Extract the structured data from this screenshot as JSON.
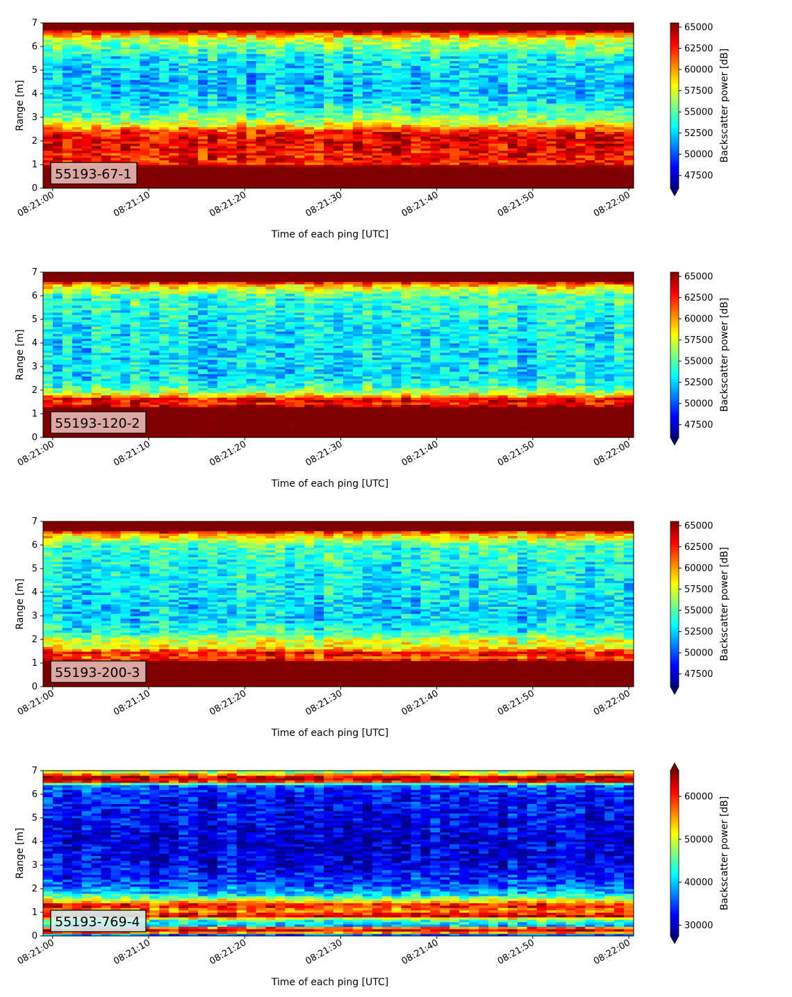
{
  "panels": [
    {
      "id": "55193-67-1",
      "label": "55193-67-1"
    },
    {
      "id": "55193-120-2",
      "label": "55193-120-2"
    },
    {
      "id": "55193-200-3",
      "label": "55193-200-3"
    },
    {
      "id": "55193-769-4",
      "label": "55193-769-4"
    }
  ],
  "colors": {
    "label_box_bg": "#e6b8b5",
    "label_box_bg_4": "#d6efef"
  },
  "chart_data": [
    {
      "type": "heatmap",
      "label": "55193-67-1",
      "xlabel": "Time of each ping [UTC]",
      "ylabel": "Range [m]",
      "colorbar_label": "Backscatter power [dB]",
      "x_ticks": [
        "08:21:00",
        "08:21:10",
        "08:21:20",
        "08:21:30",
        "08:21:40",
        "08:21:50",
        "08:22:00"
      ],
      "y_ticks": [
        0,
        1,
        2,
        3,
        4,
        5,
        6,
        7
      ],
      "xlim": [
        "08:20:59",
        "08:22:00.5"
      ],
      "ylim": [
        0,
        7
      ],
      "colormap": "jet",
      "clim": [
        46000,
        65500
      ],
      "colorbar_ticks": [
        47500,
        50000,
        52500,
        55000,
        57500,
        60000,
        62500,
        65000
      ],
      "colorbar_extend": "min",
      "profile": [
        [
          0,
          66000
        ],
        [
          0.25,
          66000
        ],
        [
          0.9,
          66000
        ],
        [
          1.05,
          62500
        ],
        [
          1.6,
          63000
        ],
        [
          2.0,
          63500
        ],
        [
          2.4,
          62500
        ],
        [
          2.7,
          58000
        ],
        [
          3.0,
          55500
        ],
        [
          3.6,
          53000
        ],
        [
          4.2,
          52000
        ],
        [
          5.0,
          52500
        ],
        [
          5.6,
          53500
        ],
        [
          6.3,
          57000
        ],
        [
          6.6,
          62000
        ],
        [
          6.75,
          66000
        ],
        [
          7.0,
          66000
        ]
      ]
    },
    {
      "type": "heatmap",
      "label": "55193-120-2",
      "xlabel": "Time of each ping [UTC]",
      "ylabel": "Range [m]",
      "colorbar_label": "Backscatter power [dB]",
      "x_ticks": [
        "08:21:00",
        "08:21:10",
        "08:21:20",
        "08:21:30",
        "08:21:40",
        "08:21:50",
        "08:22:00"
      ],
      "y_ticks": [
        0,
        1,
        2,
        3,
        4,
        5,
        6,
        7
      ],
      "xlim": [
        "08:20:59",
        "08:22:00.5"
      ],
      "ylim": [
        0,
        7
      ],
      "colormap": "jet",
      "clim": [
        46000,
        65500
      ],
      "colorbar_ticks": [
        47500,
        50000,
        52500,
        55000,
        57500,
        60000,
        62500,
        65000
      ],
      "colorbar_extend": "min",
      "profile": [
        [
          0,
          66000
        ],
        [
          0.1,
          66000
        ],
        [
          1.3,
          66000
        ],
        [
          1.4,
          62000
        ],
        [
          1.6,
          64000
        ],
        [
          1.75,
          60000
        ],
        [
          1.9,
          57000
        ],
        [
          2.2,
          54000
        ],
        [
          2.5,
          53000
        ],
        [
          3.0,
          53000
        ],
        [
          4.0,
          53000
        ],
        [
          5.0,
          53500
        ],
        [
          6.0,
          54500
        ],
        [
          6.5,
          60000
        ],
        [
          6.65,
          66000
        ],
        [
          7.0,
          66000
        ]
      ]
    },
    {
      "type": "heatmap",
      "label": "55193-200-3",
      "xlabel": "Time of each ping [UTC]",
      "ylabel": "Range [m]",
      "colorbar_label": "Backscatter power [dB]",
      "x_ticks": [
        "08:21:00",
        "08:21:10",
        "08:21:20",
        "08:21:30",
        "08:21:40",
        "08:21:50",
        "08:22:00"
      ],
      "y_ticks": [
        0,
        1,
        2,
        3,
        4,
        5,
        6,
        7
      ],
      "xlim": [
        "08:20:59",
        "08:22:00.5"
      ],
      "ylim": [
        0,
        7
      ],
      "colormap": "jet",
      "clim": [
        46000,
        65500
      ],
      "colorbar_ticks": [
        47500,
        50000,
        52500,
        55000,
        57500,
        60000,
        62500,
        65000
      ],
      "colorbar_extend": "min",
      "profile": [
        [
          0,
          66000
        ],
        [
          0.15,
          66000
        ],
        [
          1.05,
          66000
        ],
        [
          1.2,
          61000
        ],
        [
          1.45,
          63000
        ],
        [
          1.7,
          58000
        ],
        [
          2.0,
          57500
        ],
        [
          2.3,
          54000
        ],
        [
          3.0,
          52500
        ],
        [
          4.0,
          53000
        ],
        [
          5.0,
          53500
        ],
        [
          6.0,
          54500
        ],
        [
          6.5,
          60000
        ],
        [
          6.65,
          66000
        ],
        [
          7.0,
          66000
        ]
      ]
    },
    {
      "type": "heatmap",
      "label": "55193-769-4",
      "xlabel": "Time of each ping [UTC]",
      "ylabel": "Range [m]",
      "colorbar_label": "Backscatter power [dB]",
      "x_ticks": [
        "08:21:00",
        "08:21:10",
        "08:21:20",
        "08:21:30",
        "08:21:40",
        "08:21:50",
        "08:22:00"
      ],
      "y_ticks": [
        0,
        1,
        2,
        3,
        4,
        5,
        6,
        7
      ],
      "xlim": [
        "08:20:59",
        "08:22:00.5"
      ],
      "ylim": [
        0,
        7
      ],
      "colormap": "jet",
      "clim": [
        27500,
        66000
      ],
      "colorbar_ticks": [
        30000,
        40000,
        50000,
        60000
      ],
      "colorbar_extend": "both",
      "profile": [
        [
          0,
          27000
        ],
        [
          0.15,
          56000
        ],
        [
          0.3,
          66000
        ],
        [
          0.45,
          40000
        ],
        [
          0.7,
          45000
        ],
        [
          0.85,
          63000
        ],
        [
          1.1,
          55000
        ],
        [
          1.3,
          62000
        ],
        [
          1.5,
          52000
        ],
        [
          1.8,
          40000
        ],
        [
          2.2,
          35000
        ],
        [
          3.0,
          31500
        ],
        [
          4.0,
          31000
        ],
        [
          5.0,
          32000
        ],
        [
          6.0,
          33000
        ],
        [
          6.4,
          36000
        ],
        [
          6.55,
          60000
        ],
        [
          6.7,
          66000
        ],
        [
          6.85,
          55000
        ],
        [
          7.0,
          45000
        ]
      ]
    }
  ]
}
